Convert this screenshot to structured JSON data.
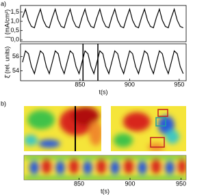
{
  "chart_data": [
    {
      "type": "line",
      "panel_label": "a)",
      "ylabel": "j (mA/cm²)",
      "xlim": [
        790,
        957
      ],
      "ylim": [
        -0.1,
        1.85
      ],
      "yticks": [
        {
          "value": 0.0,
          "label": "0,0"
        },
        {
          "value": 0.5,
          "label": "0,5"
        },
        {
          "value": 1.0,
          "label": "1,0"
        },
        {
          "value": 1.5,
          "label": "1,5"
        }
      ],
      "x": [
        792,
        795,
        798,
        801,
        804,
        807,
        810,
        813,
        816,
        819,
        822,
        825,
        828,
        831,
        834,
        837,
        840,
        843,
        846,
        849,
        852,
        855,
        858,
        861,
        864,
        867,
        870,
        873,
        876,
        879,
        882,
        885,
        888,
        891,
        894,
        897,
        900,
        903,
        906,
        909,
        912,
        915,
        918,
        921,
        924,
        927,
        930,
        933,
        936,
        939,
        942,
        945,
        948,
        951,
        954
      ],
      "series": [
        {
          "color": "#000000",
          "values": [
            1.2,
            1.65,
            1.05,
            0.72,
            0.65,
            1.2,
            1.65,
            1.05,
            0.72,
            0.65,
            1.2,
            1.65,
            1.05,
            0.72,
            0.65,
            1.2,
            1.65,
            1.05,
            0.72,
            0.65,
            1.2,
            1.65,
            1.05,
            0.72,
            0.65,
            1.2,
            1.65,
            1.05,
            0.72,
            0.65,
            1.2,
            1.65,
            1.05,
            0.72,
            0.65,
            1.2,
            1.65,
            1.05,
            0.72,
            0.65,
            1.2,
            1.65,
            1.05,
            0.72,
            0.65,
            1.2,
            1.65,
            1.05,
            0.72,
            0.65,
            1.2,
            1.65,
            1.05,
            0.72,
            0.65
          ]
        }
      ]
    },
    {
      "type": "line",
      "ylabel": "ξ̄ (rel. units)",
      "xlabel": "t(s)",
      "xlim": [
        790,
        957
      ],
      "ylim": [
        52.6,
        57.8
      ],
      "yticks": [
        54,
        56
      ],
      "xticks": [
        850,
        900,
        950
      ],
      "markers": [
        853,
        868
      ],
      "x": [
        792,
        795,
        798,
        801,
        804,
        807,
        810,
        813,
        816,
        819,
        822,
        825,
        828,
        831,
        834,
        837,
        840,
        843,
        846,
        849,
        852,
        855,
        858,
        861,
        864,
        867,
        870,
        873,
        876,
        879,
        882,
        885,
        888,
        891,
        894,
        897,
        900,
        903,
        906,
        909,
        912,
        915,
        918,
        921,
        924,
        927,
        930,
        933,
        936,
        939,
        942,
        945,
        948,
        951,
        954
      ],
      "series": [
        {
          "color": "#000000",
          "values": [
            55.2,
            56.8,
            56.4,
            54.6,
            53.6,
            55.2,
            56.8,
            56.4,
            54.6,
            53.6,
            55.2,
            56.8,
            56.4,
            54.6,
            53.6,
            55.2,
            56.8,
            56.4,
            54.6,
            53.6,
            55.2,
            56.8,
            56.4,
            54.6,
            53.6,
            55.2,
            56.8,
            56.4,
            54.6,
            53.6,
            55.2,
            56.8,
            56.4,
            54.6,
            53.6,
            55.2,
            56.8,
            56.4,
            54.6,
            53.6,
            55.2,
            56.8,
            56.4,
            54.6,
            53.6,
            55.2,
            56.8,
            56.4,
            54.6,
            53.6,
            55.2,
            56.8,
            56.4,
            54.6,
            53.6
          ]
        }
      ]
    },
    {
      "type": "image",
      "panel_label": "b)",
      "xlabel": "t(s)",
      "xlim": [
        796,
        955
      ],
      "xticks": [
        850,
        900,
        950
      ]
    }
  ]
}
